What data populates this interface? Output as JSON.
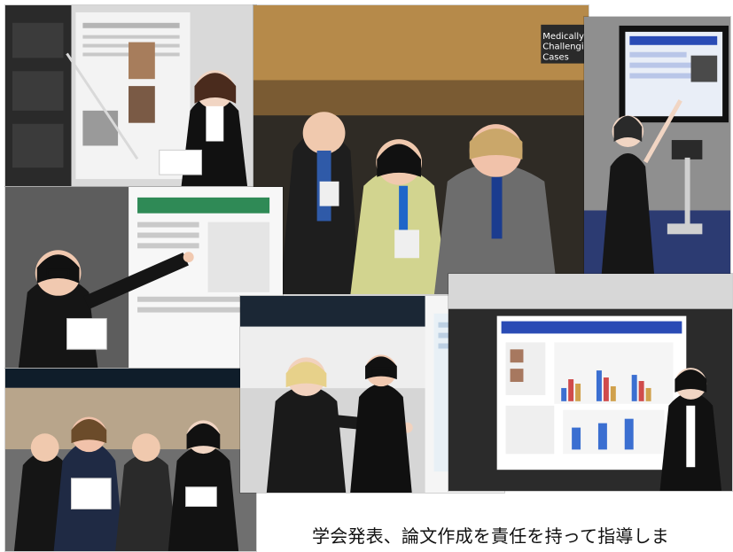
{
  "caption": "学会発表、論文作成を責任を持って指導しま",
  "photos": [
    {
      "name": "photo-poster-pointer"
    },
    {
      "name": "photo-crowd-discussion"
    },
    {
      "name": "photo-screen-presentation"
    },
    {
      "name": "photo-poster-explain"
    },
    {
      "name": "photo-hall-gesture"
    },
    {
      "name": "photo-poster-standing"
    },
    {
      "name": "photo-group-standing"
    }
  ],
  "sign_text": "Medically Challenging Cases",
  "colors": {
    "background": "#ffffff",
    "text": "#111111",
    "poster_blue": "#2a4bb5",
    "hall_blue": "#0f1d2a"
  }
}
